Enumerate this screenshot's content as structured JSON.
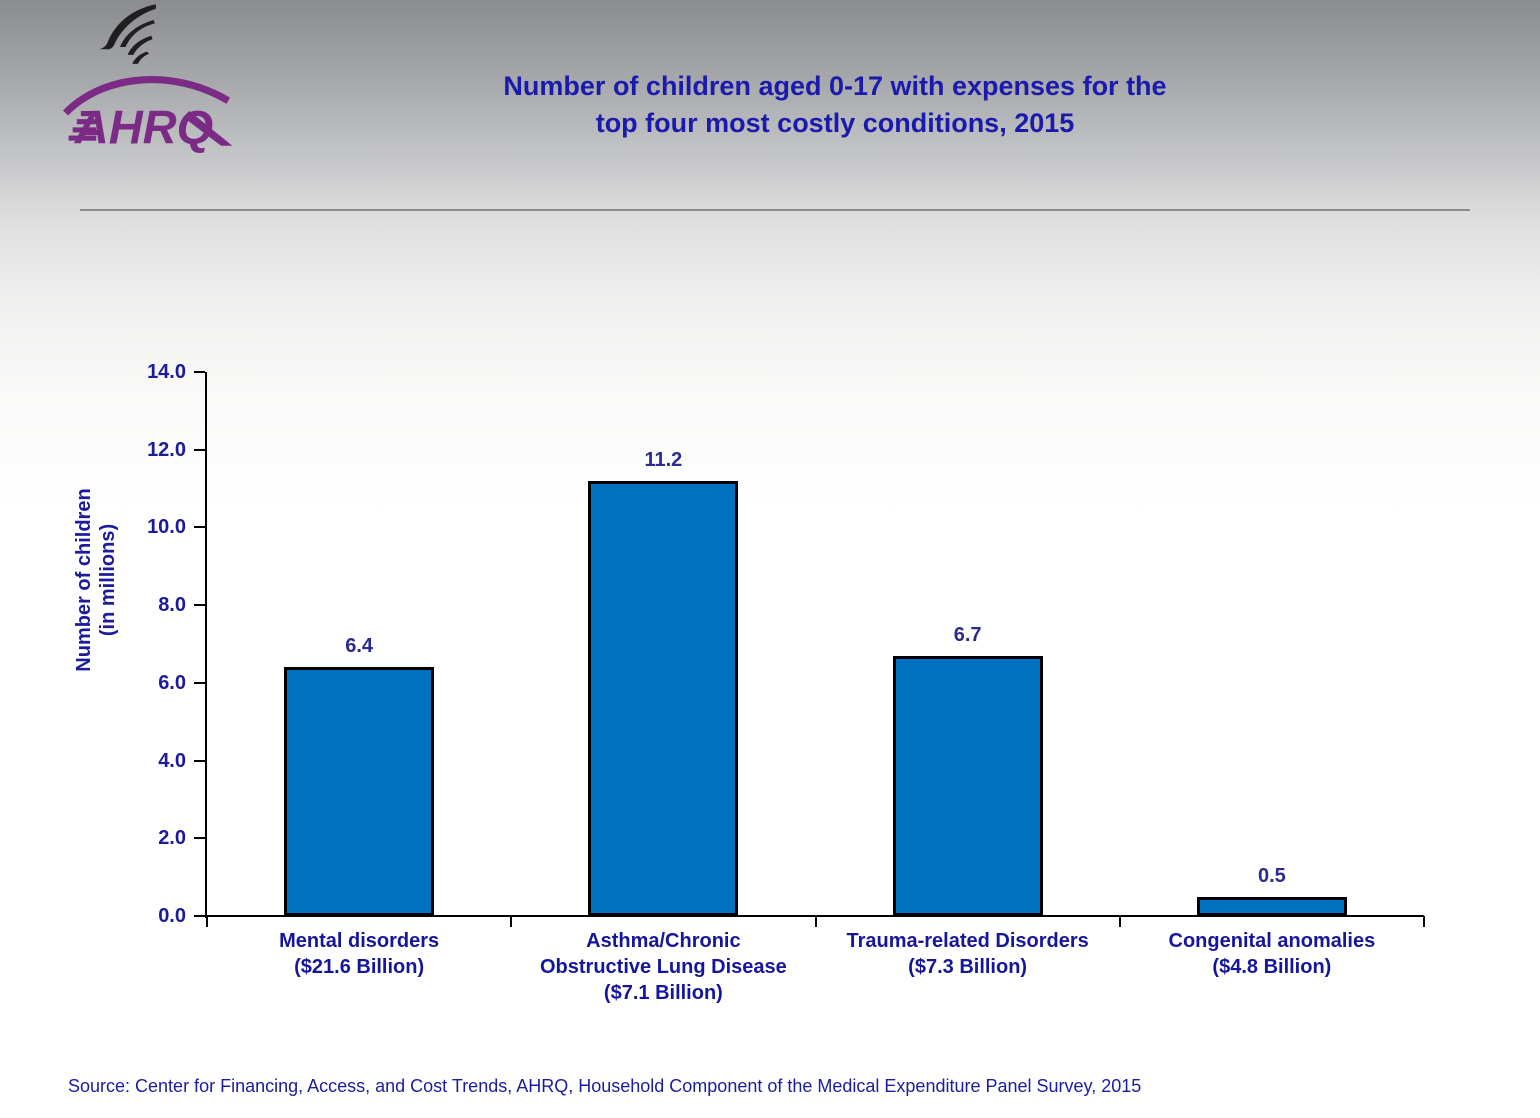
{
  "header": {
    "logo_org": "AHRQ",
    "title": "Number of children aged 0-17 with expenses for the\ntop four most costly conditions, 2015"
  },
  "chart_data": {
    "type": "bar",
    "title": "Number of children aged 0-17 with expenses for the top four most costly conditions, 2015",
    "categories": [
      "Mental disorders\n($21.6 Billion)",
      "Asthma/Chronic\nObstructive Lung Disease\n($7.1 Billion)",
      "Trauma-related Disorders\n($7.3 Billion)",
      "Congenital anomalies\n($4.8 Billion)"
    ],
    "values": [
      6.4,
      11.2,
      6.7,
      0.5
    ],
    "value_labels": [
      "6.4",
      "11.2",
      "6.7",
      "0.5"
    ],
    "xlabel": "",
    "ylabel": "Number of children\n(in millions)",
    "ylim": [
      0,
      14
    ],
    "ytick_step": 2,
    "ytick_labels": [
      "0.0",
      "2.0",
      "4.0",
      "6.0",
      "8.0",
      "10.0",
      "12.0",
      "14.0"
    ],
    "grid": false,
    "legend": "none",
    "bar_color": "#0070c0",
    "bar_border_color": "#000000"
  },
  "footer": {
    "source": "Source: Center for Financing, Access, and Cost Trends, AHRQ, Household Component of the Medical Expenditure Panel Survey, 2015"
  },
  "colors": {
    "title_blue": "#1a1aad",
    "chart_navy": "#1b1b9c",
    "bar_blue": "#0070c0",
    "logo_purple": "#7b2a85",
    "eagle_black": "#1f1f1f",
    "divider_gray": "#8a8a8a"
  },
  "icons": {
    "eagle": "hhs-eagle-icon",
    "swoosh": "ahrq-swoosh"
  }
}
